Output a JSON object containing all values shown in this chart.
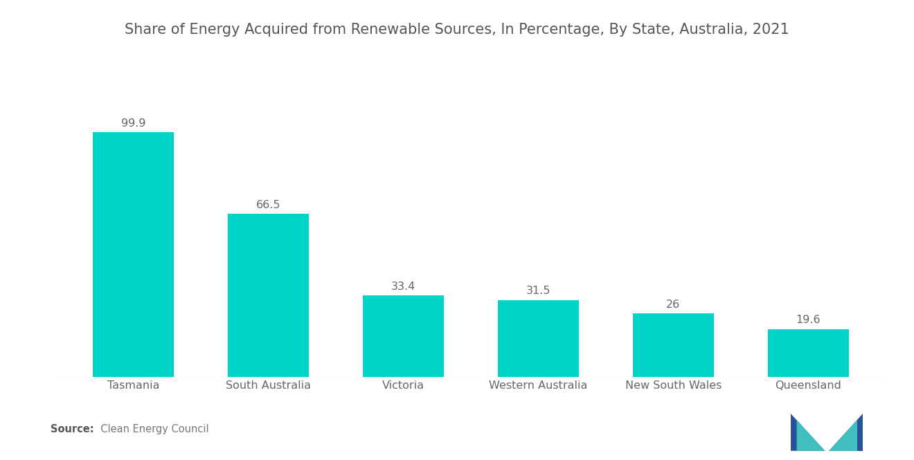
{
  "title": "Share of Energy Acquired from Renewable Sources, In Percentage, By State, Australia, 2021",
  "categories": [
    "Tasmania",
    "South Australia",
    "Victoria",
    "Western Australia",
    "New South Wales",
    "Queensland"
  ],
  "values": [
    99.9,
    66.5,
    33.4,
    31.5,
    26,
    19.6
  ],
  "bar_color": "#00D4C8",
  "background_color": "#ffffff",
  "title_fontsize": 15,
  "label_fontsize": 11.5,
  "value_fontsize": 11.5,
  "source_bold": "Source:",
  "source_normal": "  Clean Energy Council",
  "ylim": [
    0,
    120
  ],
  "bar_width": 0.6
}
